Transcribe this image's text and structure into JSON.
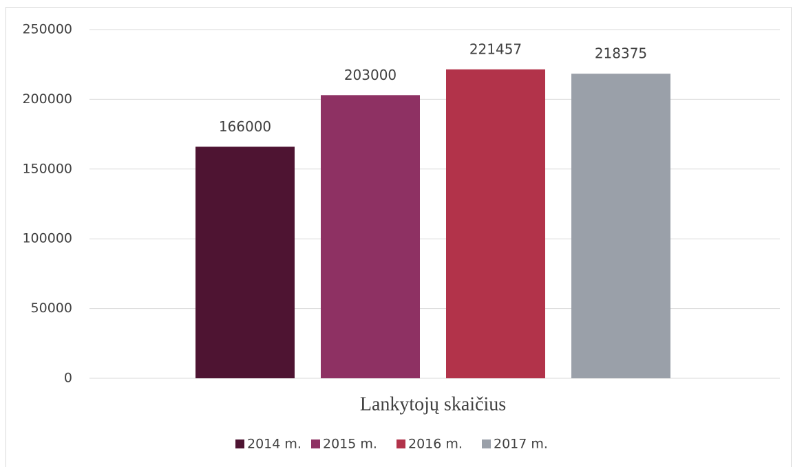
{
  "chart_data": {
    "type": "bar",
    "categories": [
      "Lankytojų skaičius"
    ],
    "series": [
      {
        "name": "2014 m.",
        "color": "#4e1432",
        "values": [
          166000
        ]
      },
      {
        "name": "2015 m.",
        "color": "#8e3163",
        "values": [
          203000
        ]
      },
      {
        "name": "2016 m.",
        "color": "#b2334a",
        "values": [
          221457
        ]
      },
      {
        "name": "2017 m.",
        "color": "#9aa0a9",
        "values": [
          218375
        ]
      }
    ],
    "ylim": [
      0,
      250000
    ],
    "yticks": [
      0,
      50000,
      100000,
      150000,
      200000,
      250000
    ],
    "grid": true,
    "legend": "bottom",
    "data_labels": true
  }
}
